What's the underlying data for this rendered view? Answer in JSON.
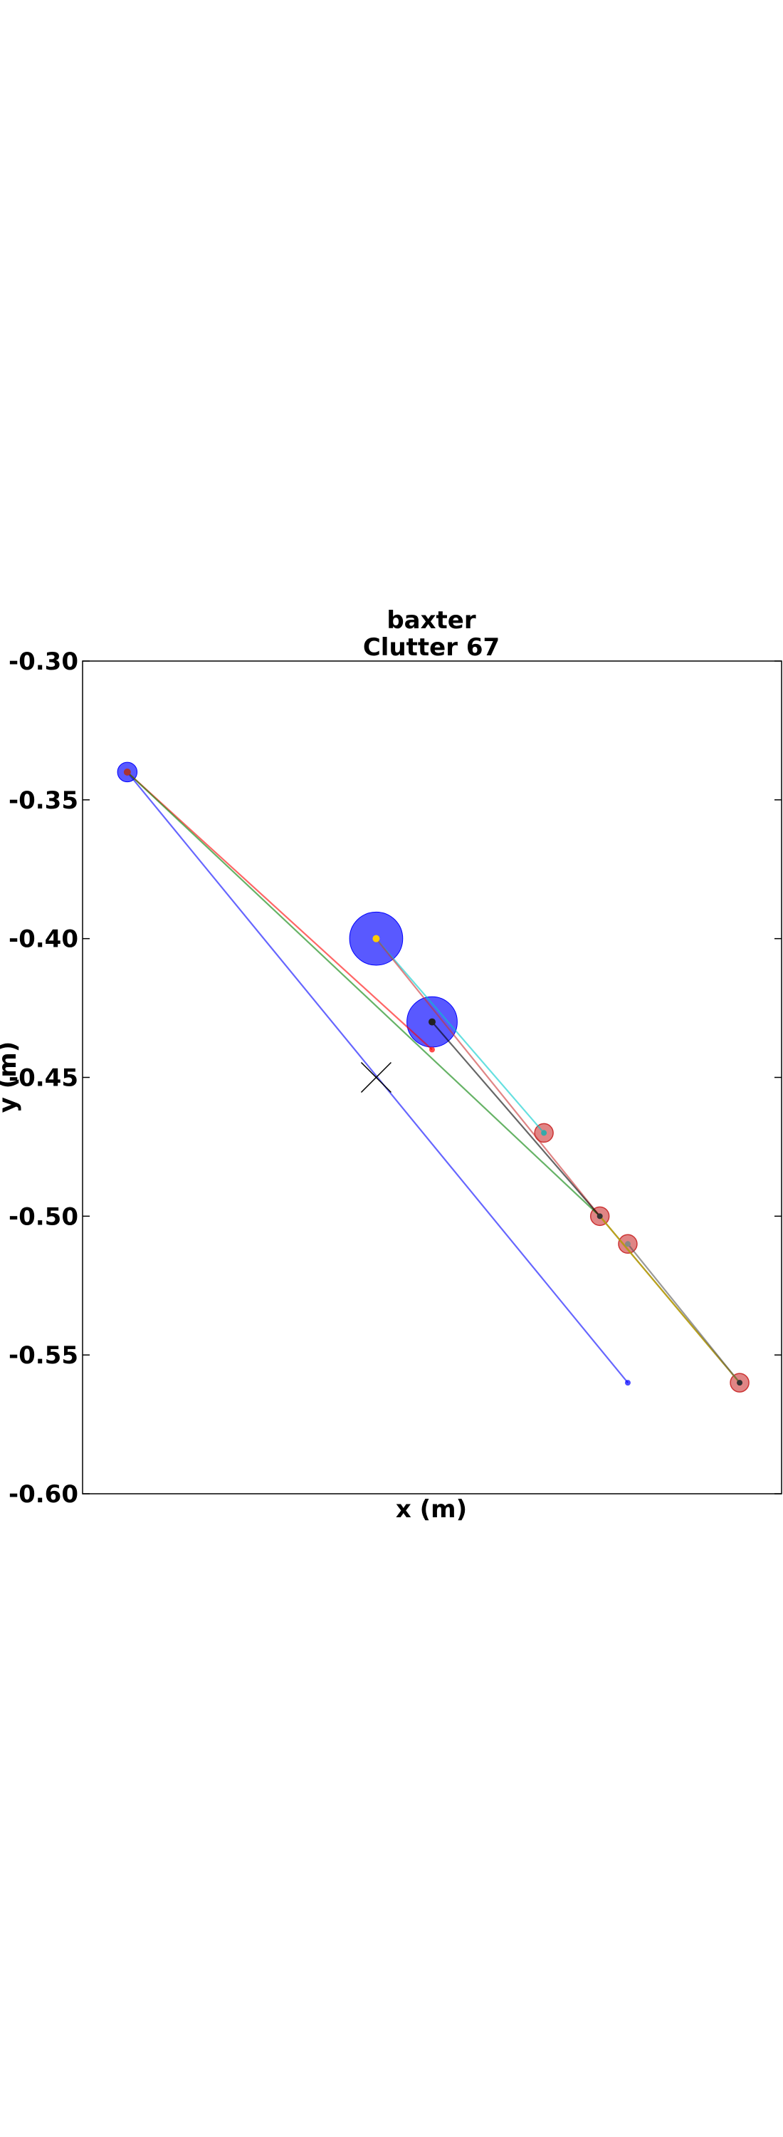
{
  "chart_data": {
    "type": "scatter",
    "title": [
      "baxter",
      "Clutter 67"
    ],
    "xlabel": "x (m)",
    "ylabel": "y (m)",
    "ylim": [
      -0.6,
      -0.3
    ],
    "xlim": [
      -0.08,
      0.17
    ],
    "yticks": [
      "-0.30",
      "-0.35",
      "-0.40",
      "-0.45",
      "-0.50",
      "-0.55",
      "-0.60"
    ],
    "ytick_values": [
      -0.3,
      -0.35,
      -0.4,
      -0.45,
      -0.5,
      -0.55,
      -0.6
    ],
    "xticks": [],
    "grid": false,
    "obstacles": [
      {
        "x": -0.064,
        "y": -0.34,
        "r": 0.0035,
        "color": "#0000ff",
        "center_color": "#aa3333"
      },
      {
        "x": 0.025,
        "y": -0.4,
        "r": 0.0095,
        "color": "#0000ff",
        "center_color": "#ffcc00"
      },
      {
        "x": 0.045,
        "y": -0.43,
        "r": 0.009,
        "color": "#0000ff",
        "center_color": "#222222"
      }
    ],
    "goals": [
      {
        "x": 0.085,
        "y": -0.47,
        "color": "#cc3333",
        "center_color": "#33aaaa"
      },
      {
        "x": 0.105,
        "y": -0.5,
        "color": "#cc3333",
        "center_color": "#333333"
      },
      {
        "x": 0.115,
        "y": -0.51,
        "color": "#cc3333",
        "center_color": "#888888"
      },
      {
        "x": 0.155,
        "y": -0.56,
        "color": "#cc3333",
        "center_color": "#333333"
      }
    ],
    "target_marker": {
      "x": 0.025,
      "y": -0.45,
      "shape": "x",
      "color": "#000000"
    },
    "series": [
      {
        "color": "#0000ff",
        "points": [
          [
            -0.064,
            -0.34
          ],
          [
            0.115,
            -0.56
          ]
        ],
        "end_marker": true
      },
      {
        "color": "#ff0000",
        "points": [
          [
            -0.064,
            -0.34
          ],
          [
            0.045,
            -0.44
          ]
        ],
        "end_marker": true
      },
      {
        "color": "#008000",
        "points": [
          [
            -0.064,
            -0.34
          ],
          [
            0.105,
            -0.5
          ],
          [
            0.155,
            -0.56
          ]
        ]
      },
      {
        "color": "#00cccc",
        "points": [
          [
            0.025,
            -0.4
          ],
          [
            0.085,
            -0.47
          ]
        ]
      },
      {
        "color": "#cc3333",
        "points": [
          [
            0.025,
            -0.4
          ],
          [
            0.105,
            -0.5
          ],
          [
            0.155,
            -0.56
          ]
        ]
      },
      {
        "color": "#000000",
        "points": [
          [
            0.045,
            -0.43
          ],
          [
            0.105,
            -0.5
          ]
        ]
      },
      {
        "color": "#cccc00",
        "points": [
          [
            0.105,
            -0.5
          ],
          [
            0.155,
            -0.56
          ]
        ]
      },
      {
        "color": "#555555",
        "points": [
          [
            0.115,
            -0.51
          ],
          [
            0.155,
            -0.56
          ]
        ]
      }
    ]
  }
}
